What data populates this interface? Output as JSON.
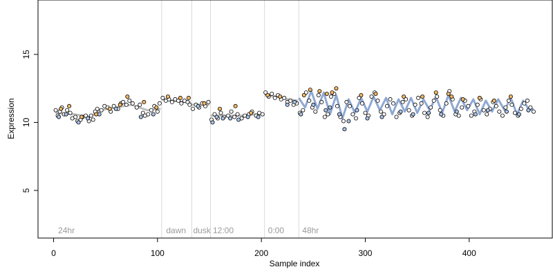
{
  "chart_data": {
    "type": "scatter",
    "title": "",
    "xlabel": "Sample index",
    "ylabel": "Expression",
    "xlim": [
      -15,
      480
    ],
    "ylim": [
      1.5,
      19
    ],
    "x_ticks": [
      0,
      100,
      200,
      300,
      400
    ],
    "y_ticks": [
      5,
      10,
      15
    ],
    "grid": false,
    "legend": "none",
    "colors": {
      "frame": "#000000",
      "point_edge": "#000000",
      "point_default": "#ffffff",
      "point_blue": "#a8c4ea",
      "point_orange": "#f5b866",
      "fit_line_blue": "#8fa8d2",
      "fit_line_orange": "#e3ab6f",
      "fit_line_gray": "#bdbdbd",
      "boundary_line": "#d9d9d9",
      "condition_label": "#9a9a9a"
    },
    "condition_boundaries": [
      104,
      133,
      151,
      203,
      236
    ],
    "condition_labels": [
      {
        "text": "24hr",
        "x": 3
      },
      {
        "text": "dawn",
        "x": 107
      },
      {
        "text": "dusk",
        "x": 133
      },
      {
        "text": "12:00",
        "x": 152
      },
      {
        "text": "0:00",
        "x": 205
      },
      {
        "text": "48hr",
        "x": 238
      }
    ],
    "fit_segments": [
      {
        "color": "fit_line_gray",
        "points": [
          [
            2,
            10.7
          ],
          [
            20,
            10.6
          ],
          [
            35,
            10.4
          ],
          [
            45,
            10.9
          ],
          [
            60,
            11.1
          ],
          [
            75,
            11.3
          ],
          [
            90,
            10.9
          ],
          [
            103,
            11.0
          ]
        ]
      },
      {
        "color": "fit_line_gray",
        "points": [
          [
            104,
            11.7
          ],
          [
            115,
            11.6
          ],
          [
            125,
            11.5
          ],
          [
            132,
            11.5
          ]
        ]
      },
      {
        "color": "fit_line_gray",
        "points": [
          [
            133,
            11.3
          ],
          [
            150,
            11.3
          ]
        ]
      },
      {
        "color": "fit_line_gray",
        "points": [
          [
            151,
            10.5
          ],
          [
            165,
            10.5
          ],
          [
            180,
            10.5
          ],
          [
            195,
            10.6
          ],
          [
            202,
            10.6
          ]
        ]
      },
      {
        "color": "fit_line_gray",
        "points": [
          [
            203,
            12.0
          ],
          [
            215,
            11.9
          ],
          [
            225,
            11.7
          ],
          [
            235,
            11.6
          ]
        ]
      },
      {
        "color": "fit_line_blue",
        "points": [
          [
            236,
            11.8
          ],
          [
            242,
            11.1
          ],
          [
            248,
            12.3
          ],
          [
            254,
            11.0
          ],
          [
            260,
            12.2
          ],
          [
            266,
            10.6
          ],
          [
            272,
            12.0
          ],
          [
            278,
            10.3
          ],
          [
            284,
            11.7
          ],
          [
            290,
            10.7
          ],
          [
            296,
            11.8
          ],
          [
            302,
            10.8
          ],
          [
            308,
            11.9
          ],
          [
            314,
            10.9
          ],
          [
            320,
            11.8
          ],
          [
            326,
            10.6
          ],
          [
            332,
            11.7
          ],
          [
            338,
            10.8
          ],
          [
            344,
            11.8
          ],
          [
            350,
            10.7
          ],
          [
            356,
            11.7
          ],
          [
            362,
            10.9
          ],
          [
            368,
            11.9
          ],
          [
            374,
            10.7
          ],
          [
            380,
            12.0
          ],
          [
            386,
            10.8
          ],
          [
            392,
            11.8
          ],
          [
            398,
            10.9
          ],
          [
            404,
            11.7
          ],
          [
            410,
            10.6
          ],
          [
            416,
            11.6
          ],
          [
            422,
            10.8
          ],
          [
            428,
            11.7
          ],
          [
            434,
            10.9
          ],
          [
            440,
            11.8
          ],
          [
            446,
            10.6
          ],
          [
            452,
            11.6
          ],
          [
            458,
            10.9
          ],
          [
            462,
            11.0
          ]
        ]
      }
    ],
    "point_groups": [
      {
        "color": "point_default",
        "points": [
          [
            2,
            10.9
          ],
          [
            4,
            10.5
          ],
          [
            6,
            10.8
          ],
          [
            8,
            11.1
          ],
          [
            10,
            10.6
          ],
          [
            13,
            10.9
          ],
          [
            16,
            10.7
          ],
          [
            18,
            10.3
          ],
          [
            21,
            10.4
          ],
          [
            23,
            10.1
          ],
          [
            26,
            10.2
          ],
          [
            28,
            10.4
          ],
          [
            31,
            10.5
          ],
          [
            34,
            10.1
          ],
          [
            36,
            10.5
          ],
          [
            38,
            10.2
          ],
          [
            40,
            10.8
          ],
          [
            42,
            11.0
          ],
          [
            46,
            10.9
          ],
          [
            49,
            11.2
          ],
          [
            52,
            11.1
          ],
          [
            55,
            10.8
          ],
          [
            58,
            11.2
          ],
          [
            62,
            11.0
          ],
          [
            65,
            11.4
          ],
          [
            67,
            11.5
          ],
          [
            70,
            11.3
          ],
          [
            73,
            11.6
          ],
          [
            76,
            11.4
          ],
          [
            80,
            11.1
          ],
          [
            83,
            11.3
          ],
          [
            86,
            10.7
          ],
          [
            88,
            10.5
          ],
          [
            91,
            10.6
          ],
          [
            94,
            10.9
          ],
          [
            97,
            11.2
          ],
          [
            100,
            10.8
          ],
          [
            102,
            11.4
          ],
          [
            105,
            11.8
          ],
          [
            108,
            11.6
          ],
          [
            111,
            11.7
          ],
          [
            114,
            11.5
          ],
          [
            117,
            11.7
          ],
          [
            120,
            11.6
          ],
          [
            123,
            11.4
          ],
          [
            126,
            11.6
          ],
          [
            129,
            11.5
          ],
          [
            131,
            11.3
          ],
          [
            134,
            11.0
          ],
          [
            137,
            11.3
          ],
          [
            140,
            11.1
          ],
          [
            143,
            11.4
          ],
          [
            146,
            11.2
          ],
          [
            149,
            11.5
          ],
          [
            152,
            10.2
          ],
          [
            155,
            10.6
          ],
          [
            158,
            10.3
          ],
          [
            161,
            10.7
          ],
          [
            164,
            10.4
          ],
          [
            168,
            10.5
          ],
          [
            171,
            10.8
          ],
          [
            174,
            10.4
          ],
          [
            177,
            10.6
          ],
          [
            181,
            10.3
          ],
          [
            184,
            10.5
          ],
          [
            188,
            10.6
          ],
          [
            191,
            10.8
          ],
          [
            195,
            10.5
          ],
          [
            198,
            10.7
          ],
          [
            201,
            10.6
          ],
          [
            204,
            12.2
          ],
          [
            207,
            11.9
          ],
          [
            210,
            12.1
          ],
          [
            213,
            11.8
          ],
          [
            216,
            12.0
          ],
          [
            219,
            11.7
          ],
          [
            222,
            11.8
          ],
          [
            225,
            11.5
          ],
          [
            228,
            11.6
          ],
          [
            231,
            11.3
          ],
          [
            234,
            11.4
          ],
          [
            237,
            10.7
          ],
          [
            240,
            10.9
          ],
          [
            243,
            12.2
          ],
          [
            246,
            11.6
          ],
          [
            249,
            11.1
          ],
          [
            252,
            10.8
          ],
          [
            255,
            12.0
          ],
          [
            258,
            11.5
          ],
          [
            261,
            10.4
          ],
          [
            264,
            10.6
          ],
          [
            267,
            11.9
          ],
          [
            270,
            12.1
          ],
          [
            273,
            11.2
          ],
          [
            276,
            10.4
          ],
          [
            279,
            10.1
          ],
          [
            282,
            11.5
          ],
          [
            285,
            11.2
          ],
          [
            288,
            10.6
          ],
          [
            291,
            10.3
          ],
          [
            294,
            11.8
          ],
          [
            297,
            11.4
          ],
          [
            300,
            10.7
          ],
          [
            303,
            10.5
          ],
          [
            306,
            11.9
          ],
          [
            309,
            12.2
          ],
          [
            312,
            11.6
          ],
          [
            315,
            10.8
          ],
          [
            318,
            10.6
          ],
          [
            321,
            11.2
          ],
          [
            324,
            11.7
          ],
          [
            327,
            11.4
          ],
          [
            330,
            10.4
          ],
          [
            333,
            10.7
          ],
          [
            336,
            11.5
          ],
          [
            339,
            11.7
          ],
          [
            342,
            10.9
          ],
          [
            345,
            10.5
          ],
          [
            348,
            11.3
          ],
          [
            351,
            11.8
          ],
          [
            354,
            11.4
          ],
          [
            357,
            10.7
          ],
          [
            360,
            10.4
          ],
          [
            363,
            11.1
          ],
          [
            366,
            11.6
          ],
          [
            369,
            11.9
          ],
          [
            372,
            10.9
          ],
          [
            375,
            10.5
          ],
          [
            378,
            11.4
          ],
          [
            381,
            12.3
          ],
          [
            384,
            11.7
          ],
          [
            387,
            10.6
          ],
          [
            390,
            10.5
          ],
          [
            393,
            11.1
          ],
          [
            396,
            11.6
          ],
          [
            399,
            11.2
          ],
          [
            402,
            10.5
          ],
          [
            405,
            10.8
          ],
          [
            408,
            11.3
          ],
          [
            411,
            11.7
          ],
          [
            414,
            10.9
          ],
          [
            417,
            10.6
          ],
          [
            420,
            11.0
          ],
          [
            423,
            11.5
          ],
          [
            426,
            11.2
          ],
          [
            429,
            10.8
          ],
          [
            432,
            10.5
          ],
          [
            435,
            11.1
          ],
          [
            438,
            11.6
          ],
          [
            441,
            11.3
          ],
          [
            444,
            10.7
          ],
          [
            447,
            10.5
          ],
          [
            450,
            11.0
          ],
          [
            453,
            11.4
          ],
          [
            456,
            11.6
          ],
          [
            459,
            11.1
          ],
          [
            462,
            10.8
          ]
        ]
      },
      {
        "color": "point_blue",
        "points": [
          [
            5,
            10.4
          ],
          [
            12,
            10.6
          ],
          [
            24,
            10.0
          ],
          [
            33,
            10.3
          ],
          [
            44,
            10.6
          ],
          [
            60,
            11.0
          ],
          [
            84,
            10.4
          ],
          [
            96,
            10.6
          ],
          [
            139,
            11.2
          ],
          [
            153,
            10.0
          ],
          [
            157,
            10.4
          ],
          [
            163,
            10.3
          ],
          [
            170,
            10.3
          ],
          [
            178,
            10.2
          ],
          [
            187,
            10.4
          ],
          [
            197,
            10.4
          ],
          [
            225,
            11.3
          ],
          [
            232,
            11.5
          ],
          [
            238,
            10.6
          ],
          [
            250,
            11.3
          ],
          [
            262,
            10.9
          ],
          [
            266,
            11.1
          ],
          [
            275,
            10.6
          ],
          [
            280,
            9.5
          ],
          [
            284,
            10.1
          ],
          [
            292,
            10.9
          ],
          [
            302,
            10.3
          ],
          [
            316,
            10.4
          ],
          [
            334,
            10.8
          ],
          [
            346,
            10.6
          ],
          [
            361,
            10.7
          ],
          [
            373,
            10.6
          ],
          [
            388,
            10.8
          ],
          [
            406,
            10.6
          ],
          [
            418,
            10.9
          ],
          [
            436,
            10.8
          ],
          [
            448,
            10.6
          ],
          [
            457,
            10.9
          ]
        ]
      },
      {
        "color": "point_orange",
        "points": [
          [
            7,
            11.0
          ],
          [
            15,
            11.2
          ],
          [
            27,
            10.4
          ],
          [
            41,
            10.6
          ],
          [
            54,
            11.0
          ],
          [
            64,
            11.3
          ],
          [
            71,
            11.9
          ],
          [
            87,
            11.5
          ],
          [
            99,
            11.1
          ],
          [
            110,
            11.9
          ],
          [
            122,
            11.8
          ],
          [
            130,
            11.8
          ],
          [
            145,
            11.4
          ],
          [
            160,
            11.0
          ],
          [
            175,
            11.2
          ],
          [
            190,
            10.7
          ],
          [
            206,
            12.0
          ],
          [
            218,
            11.9
          ],
          [
            241,
            12.0
          ],
          [
            247,
            12.4
          ],
          [
            256,
            12.3
          ],
          [
            263,
            12.1
          ],
          [
            268,
            12.2
          ],
          [
            272,
            12.5
          ],
          [
            296,
            12.0
          ],
          [
            310,
            12.1
          ],
          [
            337,
            11.9
          ],
          [
            355,
            11.9
          ],
          [
            368,
            12.2
          ],
          [
            380,
            12.1
          ],
          [
            383,
            11.9
          ],
          [
            394,
            11.7
          ],
          [
            410,
            11.8
          ],
          [
            424,
            11.6
          ],
          [
            440,
            11.9
          ]
        ]
      }
    ]
  }
}
